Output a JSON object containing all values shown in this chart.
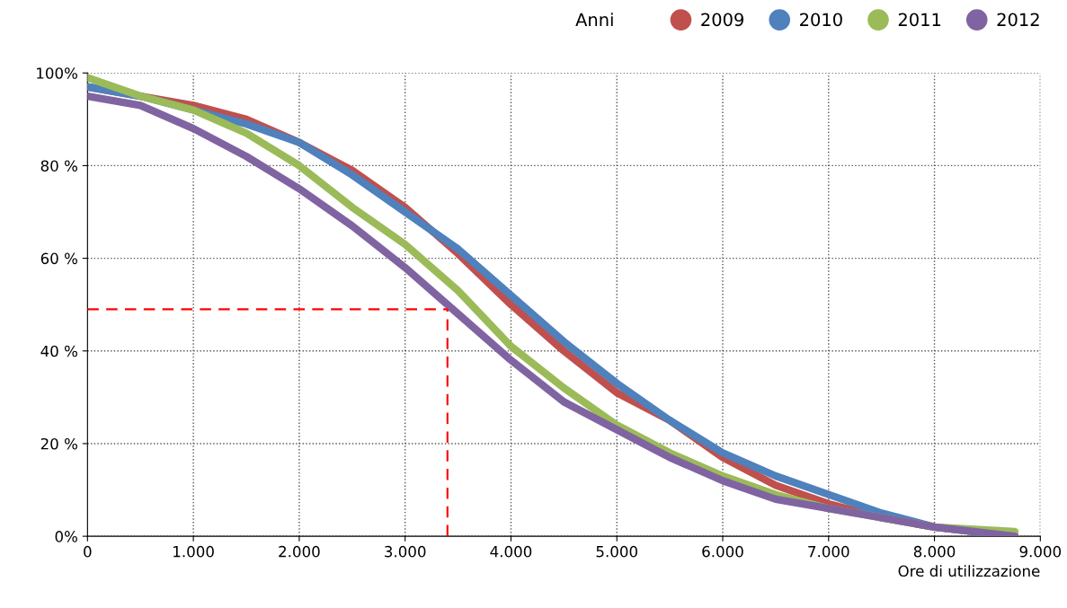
{
  "chart_data": {
    "type": "line",
    "xlabel": "Ore di utilizzazione",
    "legend_title": "Anni",
    "legend": "top right",
    "grid": true,
    "line_style": "solid",
    "xlim": [
      0,
      9000
    ],
    "xticks": [
      0,
      {
        "value": 1000,
        "label": "1.000"
      },
      {
        "value": 2000,
        "label": "2.000"
      },
      {
        "value": 3000,
        "label": "3.000"
      },
      {
        "value": 4000,
        "label": "4.000"
      },
      {
        "value": 5000,
        "label": "5.000"
      },
      {
        "value": 6000,
        "label": "6.000"
      },
      {
        "value": 7000,
        "label": "7.000"
      },
      {
        "value": 8000,
        "label": "8.000"
      },
      {
        "value": 9000,
        "label": "9.000"
      }
    ],
    "ylim": [
      0,
      100
    ],
    "yticks": [
      {
        "value": 0,
        "label": "0%"
      },
      {
        "value": 20,
        "label": "20 %"
      },
      {
        "value": 40,
        "label": "40 %"
      },
      {
        "value": 60,
        "label": "60 %"
      },
      {
        "value": 80,
        "label": "80 %"
      },
      {
        "value": 100,
        "label": "100%"
      }
    ],
    "x": [
      0,
      500,
      1000,
      1500,
      2000,
      2500,
      3000,
      3500,
      4000,
      4500,
      5000,
      5500,
      6000,
      6500,
      7000,
      7500,
      8000,
      8760
    ],
    "series": [
      {
        "name": "2009",
        "color": "#c0504d",
        "values": [
          97,
          95,
          93,
          90,
          85,
          79,
          71,
          61,
          50,
          40,
          31,
          25,
          17,
          11,
          7,
          4,
          2,
          0
        ]
      },
      {
        "name": "2010",
        "color": "#4f81bd",
        "values": [
          97,
          95,
          92,
          89,
          85,
          78,
          70,
          62,
          52,
          42,
          33,
          25,
          18,
          13,
          9,
          5,
          2,
          0
        ]
      },
      {
        "name": "2011",
        "color": "#9bbb59",
        "values": [
          99,
          95,
          92,
          87,
          80,
          71,
          63,
          53,
          41,
          32,
          24,
          18,
          13,
          9,
          6,
          4,
          2,
          1
        ]
      },
      {
        "name": "2012",
        "color": "#8064a2",
        "values": [
          95,
          93,
          88,
          82,
          75,
          67,
          58,
          48,
          38,
          29,
          23,
          17,
          12,
          8,
          6,
          4,
          2,
          0
        ]
      }
    ],
    "ref_lines": [
      {
        "axis": "y",
        "value": 49,
        "color": "#ff0000",
        "line_style": "dashed"
      },
      {
        "axis": "x",
        "value": 3400,
        "color": "#ff0000",
        "line_style": "dashed"
      }
    ]
  }
}
